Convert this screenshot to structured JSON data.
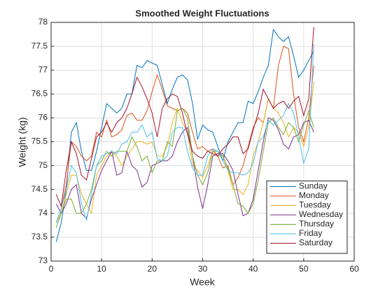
{
  "chart_data": {
    "type": "line",
    "title": "Smoothed Weight Fluctuations",
    "x_label": "Week",
    "y_label": "Weight (kg)",
    "x": [
      1,
      2,
      3,
      4,
      5,
      6,
      7,
      8,
      9,
      10,
      11,
      12,
      13,
      14,
      15,
      16,
      17,
      18,
      19,
      20,
      21,
      22,
      23,
      24,
      25,
      26,
      27,
      28,
      29,
      30,
      31,
      32,
      33,
      34,
      35,
      36,
      37,
      38,
      39,
      40,
      41,
      42,
      43,
      44,
      45,
      46,
      47,
      48,
      49,
      50,
      51,
      52
    ],
    "xlim": [
      0,
      60
    ],
    "xticks": [
      0,
      10,
      20,
      30,
      40,
      50,
      60
    ],
    "ylim": [
      73,
      78
    ],
    "yticks": [
      73,
      73.5,
      74,
      74.5,
      75,
      75.5,
      76,
      76.5,
      77,
      77.5,
      78
    ],
    "grid": true,
    "legend": "southeast",
    "series": [
      {
        "name": "Sunday",
        "color": "#0072BD",
        "values": [
          73.4,
          73.8,
          74.5,
          75.7,
          75.9,
          75.3,
          74.9,
          74.9,
          75.3,
          75.8,
          76.3,
          76.2,
          76.1,
          76.2,
          76.5,
          76.5,
          77.1,
          77.05,
          77.2,
          77.15,
          77.1,
          76.7,
          76.3,
          76.6,
          76.85,
          76.9,
          76.8,
          76.3,
          75.55,
          75.85,
          75.75,
          75.7,
          75.4,
          75.1,
          75.5,
          75.7,
          75.9,
          75.9,
          76.35,
          76.3,
          76.55,
          76.85,
          77.1,
          77.85,
          77.7,
          77.6,
          77.7,
          77.3,
          76.85,
          77.0,
          77.2,
          77.4
        ]
      },
      {
        "name": "Monday",
        "color": "#D95319",
        "values": [
          73.8,
          74.1,
          74.6,
          75.5,
          75.4,
          75.2,
          75.1,
          75.2,
          75.7,
          75.6,
          75.95,
          75.6,
          75.65,
          75.75,
          76.05,
          76.1,
          75.95,
          75.95,
          76.15,
          76.55,
          76.9,
          76.6,
          76.25,
          76.2,
          76.15,
          76.2,
          76.1,
          75.7,
          75.35,
          75.4,
          75.3,
          75.35,
          75.2,
          74.95,
          75.0,
          74.6,
          74.75,
          75.0,
          75.4,
          75.8,
          76.0,
          75.9,
          76.4,
          76.2,
          77.1,
          77.5,
          77.45,
          76.5,
          75.8,
          75.5,
          76.0,
          77.1
        ]
      },
      {
        "name": "Tuesday",
        "color": "#EDB120",
        "values": [
          73.8,
          74.0,
          74.4,
          74.8,
          74.8,
          74.4,
          74.2,
          74.0,
          74.8,
          75.0,
          75.2,
          75.3,
          75.2,
          75.0,
          75.2,
          75.35,
          75.5,
          75.5,
          75.45,
          75.5,
          75.2,
          75.2,
          75.4,
          75.9,
          76.2,
          75.9,
          75.7,
          75.0,
          74.9,
          74.75,
          75.0,
          75.3,
          75.2,
          75.2,
          74.9,
          74.5,
          74.5,
          74.4,
          74.6,
          75.2,
          75.5,
          75.9,
          76.4,
          76.2,
          76.1,
          75.9,
          75.6,
          75.8,
          75.7,
          75.4,
          75.8,
          76.75
        ]
      },
      {
        "name": "Wednesday",
        "color": "#7E2F8E",
        "values": [
          74.2,
          74.0,
          74.2,
          74.5,
          74.6,
          74.0,
          73.9,
          74.3,
          74.6,
          74.9,
          75.1,
          75.3,
          74.8,
          74.85,
          75.3,
          75.0,
          74.9,
          74.55,
          74.65,
          75.0,
          75.05,
          75.1,
          75.1,
          75.2,
          75.5,
          75.7,
          75.8,
          75.2,
          74.55,
          74.1,
          74.6,
          75.2,
          75.25,
          75.25,
          75.1,
          74.9,
          74.4,
          73.95,
          74.0,
          74.3,
          74.9,
          75.5,
          76.0,
          75.95,
          75.75,
          75.45,
          75.35,
          75.6,
          75.65,
          75.9,
          75.95,
          75.7
        ]
      },
      {
        "name": "Thursday",
        "color": "#77AC30",
        "values": [
          73.7,
          74.0,
          74.3,
          74.3,
          74.0,
          74.0,
          74.2,
          74.5,
          75.0,
          75.1,
          75.3,
          75.2,
          75.3,
          75.3,
          75.3,
          75.6,
          75.4,
          75.1,
          75.2,
          74.85,
          75.1,
          75.1,
          75.5,
          75.4,
          76.15,
          76.2,
          76.0,
          75.2,
          74.8,
          74.6,
          74.85,
          75.3,
          75.3,
          75.2,
          74.95,
          74.6,
          74.2,
          74.15,
          74.0,
          74.2,
          74.7,
          75.3,
          75.9,
          76.0,
          75.8,
          75.65,
          75.9,
          75.8,
          75.5,
          75.85,
          76.15,
          75.8
        ]
      },
      {
        "name": "Friday",
        "color": "#4DBEEE",
        "values": [
          73.8,
          74.1,
          74.5,
          75.0,
          74.85,
          74.2,
          73.85,
          74.4,
          75.0,
          75.2,
          75.25,
          75.3,
          75.25,
          75.45,
          75.5,
          75.7,
          75.7,
          75.85,
          75.6,
          75.7,
          75.15,
          75.1,
          75.2,
          75.7,
          75.8,
          75.8,
          75.3,
          74.95,
          74.8,
          74.8,
          75.2,
          75.35,
          75.3,
          75.1,
          74.9,
          74.85,
          74.85,
          74.8,
          74.85,
          75.05,
          75.5,
          75.6,
          75.95,
          75.85,
          75.95,
          76.05,
          76.3,
          76.1,
          75.6,
          75.05,
          75.35,
          77.55
        ]
      },
      {
        "name": "Saturday",
        "color": "#A2142F",
        "values": [
          74.4,
          74.15,
          74.9,
          75.5,
          75.25,
          74.8,
          74.7,
          75.15,
          75.6,
          75.7,
          75.9,
          75.7,
          75.9,
          76.0,
          76.2,
          76.5,
          76.85,
          76.65,
          76.4,
          76.1,
          75.6,
          76.2,
          76.4,
          76.5,
          76.45,
          76.1,
          75.65,
          75.3,
          75.2,
          75.15,
          75.3,
          75.25,
          75.2,
          75.35,
          75.45,
          75.6,
          75.6,
          75.25,
          75.35,
          75.75,
          76.1,
          76.6,
          76.4,
          76.2,
          76.3,
          76.35,
          76.2,
          76.35,
          76.45,
          76.05,
          76.4,
          77.9
        ]
      }
    ]
  }
}
